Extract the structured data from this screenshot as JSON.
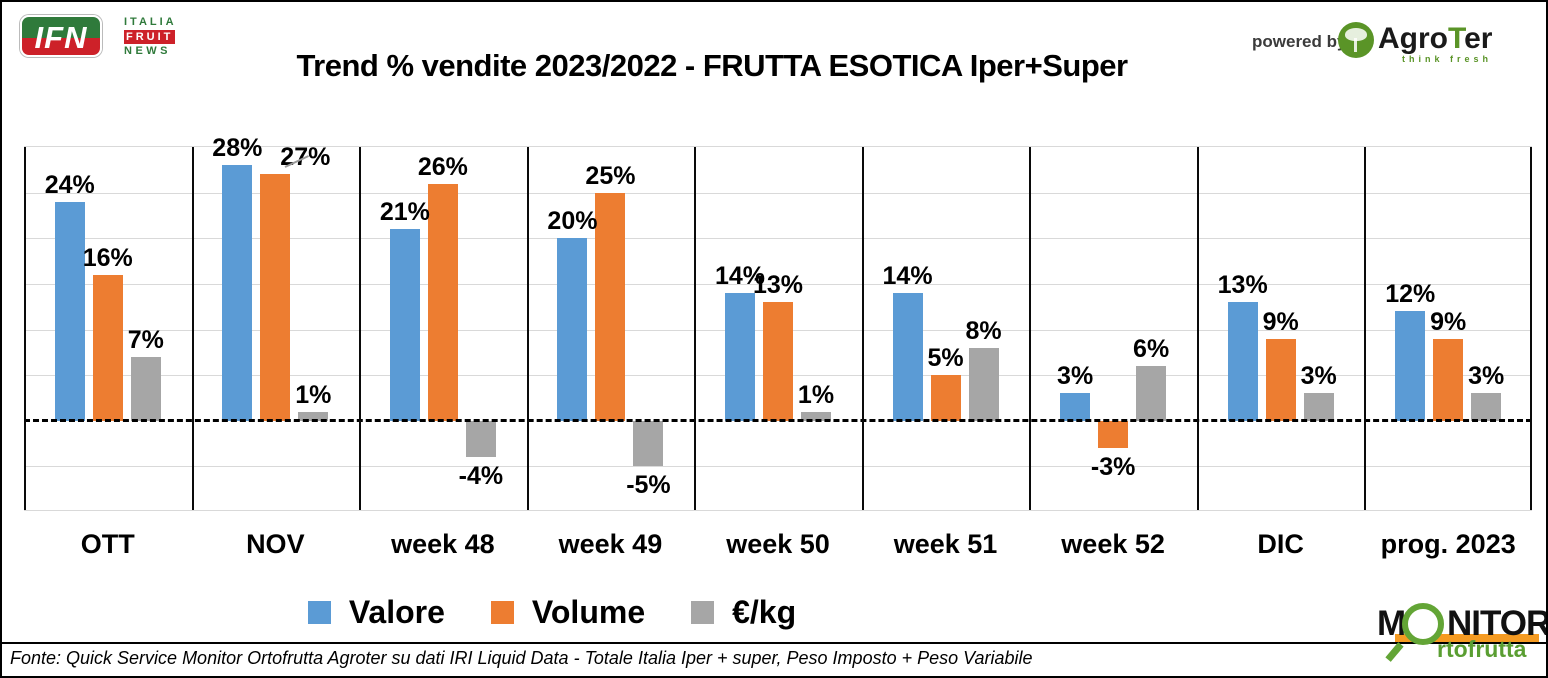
{
  "header": {
    "ifn_logo": {
      "acronym": "IFN",
      "line1": "ITALIA",
      "line2": "FRUIT",
      "line3": "NEWS"
    },
    "title": "Trend % vendite 2023/2022 - FRUTTA ESOTICA Iper+Super",
    "powered_by": "powered by",
    "agroter": {
      "part1": "Agro",
      "part2": "T",
      "part3": "er",
      "tagline": "think fresh"
    }
  },
  "chart_data": {
    "type": "bar",
    "title": "Trend % vendite 2023/2022 - FRUTTA ESOTICA Iper+Super",
    "categories": [
      "OTT",
      "NOV",
      "week 48",
      "week 49",
      "week 50",
      "week 51",
      "week 52",
      "DIC",
      "prog. 2023"
    ],
    "series": [
      {
        "name": "Valore",
        "slug": "valore",
        "color": "#5B9BD5",
        "values": [
          24,
          28,
          21,
          20,
          14,
          14,
          3,
          13,
          12
        ]
      },
      {
        "name": "Volume",
        "slug": "volume",
        "color": "#ED7D31",
        "values": [
          16,
          27,
          26,
          25,
          13,
          5,
          -3,
          9,
          9
        ]
      },
      {
        "name": "€/kg",
        "slug": "eur-kg",
        "color": "#A6A6A6",
        "values": [
          7,
          1,
          -4,
          -5,
          1,
          8,
          6,
          3,
          3
        ]
      }
    ],
    "ylim": [
      -10,
      30
    ],
    "grid_step": 5,
    "value_suffix": "%",
    "grid": true,
    "legend_position": "bottom",
    "zero_line_style": "dashed",
    "label_overrides": {
      "1|1": {
        "dx": 30,
        "dy": 0,
        "leader": true
      }
    }
  },
  "legend_note": "legend entries are chart_data.series names",
  "monitor_logo": {
    "part1": "M",
    "part2": "NITOR",
    "part3": "rtofrutta"
  },
  "footer": {
    "source": "Fonte: Quick Service Monitor Ortofrutta Agroter su dati IRI Liquid Data - Totale Italia Iper + super, Peso Imposto + Peso Variabile"
  },
  "colors": {
    "valore": "#5B9BD5",
    "volume": "#ED7D31",
    "eur_kg": "#A6A6A6",
    "gridline": "#D9D9D9",
    "separator": "#0A0A0A",
    "ifn_green": "#2F7A3B",
    "ifn_red": "#CD2129",
    "agroter_green": "#5A9427",
    "monitor_orange": "#F59B22",
    "monitor_green": "#63A536"
  }
}
